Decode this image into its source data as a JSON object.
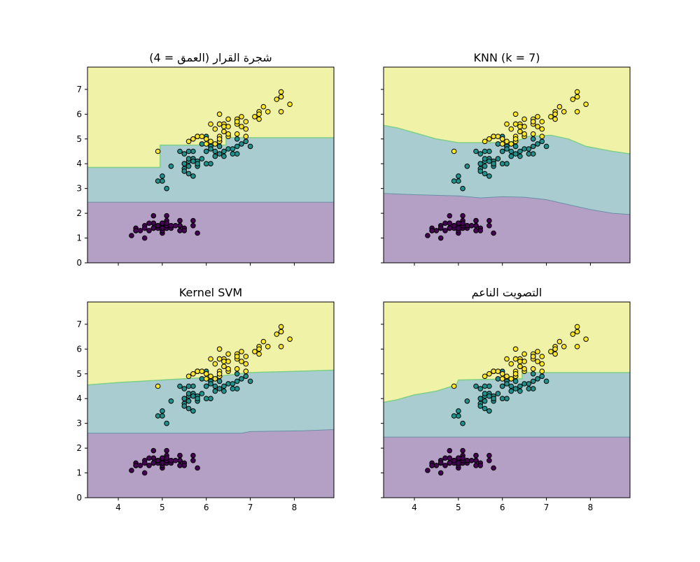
{
  "colors": {
    "class_0": "#440154",
    "class_1": "#21918c",
    "class_2": "#fde725",
    "region_0": "#b4a0c4",
    "region_1": "#a8ccd0",
    "region_2": "#f0f2a8",
    "boundary_upper": "#7fcf86",
    "boundary_lower": "#6a8fa6",
    "point_edge": "#000000"
  },
  "chart_data": [
    {
      "type": "scatter",
      "title": "شجرة القرار (العمق = 4)",
      "xlim": [
        3.3,
        8.9
      ],
      "ylim": [
        0,
        7.9
      ],
      "xticks": [
        4,
        5,
        6,
        7,
        8
      ],
      "yticks": [
        0,
        1,
        2,
        3,
        4,
        5,
        6,
        7
      ],
      "show_xtick_labels": false,
      "show_ytick_labels": true,
      "grid": false,
      "boundary_upper": [
        [
          3.3,
          3.85
        ],
        [
          4.95,
          3.85
        ],
        [
          4.95,
          4.75
        ],
        [
          6.45,
          4.75
        ],
        [
          6.45,
          5.05
        ],
        [
          8.9,
          5.05
        ]
      ],
      "boundary_lower": [
        [
          3.3,
          2.45
        ],
        [
          8.9,
          2.45
        ]
      ]
    },
    {
      "type": "scatter",
      "title": "KNN (k = 7)",
      "xlim": [
        3.3,
        8.9
      ],
      "ylim": [
        0,
        7.9
      ],
      "xticks": [
        4,
        5,
        6,
        7,
        8
      ],
      "yticks": [
        0,
        1,
        2,
        3,
        4,
        5,
        6,
        7
      ],
      "show_xtick_labels": false,
      "show_ytick_labels": false,
      "grid": false,
      "boundary_upper": [
        [
          3.3,
          5.55
        ],
        [
          3.6,
          5.45
        ],
        [
          4.0,
          5.25
        ],
        [
          4.5,
          5.0
        ],
        [
          5.0,
          4.85
        ],
        [
          6.0,
          4.85
        ],
        [
          6.3,
          4.9
        ],
        [
          6.6,
          5.1
        ],
        [
          7.1,
          5.15
        ],
        [
          7.5,
          5.0
        ],
        [
          7.9,
          4.7
        ],
        [
          8.5,
          4.5
        ],
        [
          8.9,
          4.4
        ]
      ],
      "boundary_lower": [
        [
          3.3,
          2.8
        ],
        [
          4.0,
          2.75
        ],
        [
          5.0,
          2.7
        ],
        [
          5.5,
          2.62
        ],
        [
          6.0,
          2.67
        ],
        [
          6.5,
          2.65
        ],
        [
          7.0,
          2.55
        ],
        [
          7.5,
          2.35
        ],
        [
          8.0,
          2.15
        ],
        [
          8.5,
          2.0
        ],
        [
          8.9,
          1.95
        ]
      ]
    },
    {
      "type": "scatter",
      "title": "Kernel SVM",
      "xlim": [
        3.3,
        8.9
      ],
      "ylim": [
        0,
        7.9
      ],
      "xticks": [
        4,
        5,
        6,
        7,
        8
      ],
      "yticks": [
        0,
        1,
        2,
        3,
        4,
        5,
        6,
        7
      ],
      "show_xtick_labels": true,
      "show_ytick_labels": true,
      "grid": false,
      "boundary_upper": [
        [
          3.3,
          4.55
        ],
        [
          4.0,
          4.65
        ],
        [
          5.0,
          4.75
        ],
        [
          6.0,
          4.85
        ],
        [
          7.0,
          5.05
        ],
        [
          8.0,
          5.1
        ],
        [
          8.9,
          5.15
        ]
      ],
      "boundary_lower": [
        [
          3.3,
          2.6
        ],
        [
          6.8,
          2.6
        ],
        [
          7.0,
          2.67
        ],
        [
          8.2,
          2.7
        ],
        [
          8.9,
          2.75
        ]
      ]
    },
    {
      "type": "scatter",
      "title": "التصويت الناعم",
      "xlim": [
        3.3,
        8.9
      ],
      "ylim": [
        0,
        7.9
      ],
      "xticks": [
        4,
        5,
        6,
        7,
        8
      ],
      "yticks": [
        0,
        1,
        2,
        3,
        4,
        5,
        6,
        7
      ],
      "show_xtick_labels": true,
      "show_ytick_labels": false,
      "grid": false,
      "boundary_upper": [
        [
          3.3,
          3.85
        ],
        [
          3.6,
          3.95
        ],
        [
          4.0,
          4.15
        ],
        [
          4.5,
          4.3
        ],
        [
          4.95,
          4.55
        ],
        [
          5.0,
          4.75
        ],
        [
          6.45,
          4.8
        ],
        [
          6.45,
          5.05
        ],
        [
          8.9,
          5.05
        ]
      ],
      "boundary_lower": [
        [
          3.3,
          2.45
        ],
        [
          8.9,
          2.45
        ]
      ]
    }
  ],
  "points": {
    "class_0": [
      [
        5.1,
        1.4
      ],
      [
        4.9,
        1.4
      ],
      [
        4.7,
        1.3
      ],
      [
        4.6,
        1.5
      ],
      [
        5.0,
        1.4
      ],
      [
        5.4,
        1.7
      ],
      [
        4.6,
        1.4
      ],
      [
        5.0,
        1.5
      ],
      [
        4.4,
        1.4
      ],
      [
        4.9,
        1.5
      ],
      [
        5.4,
        1.5
      ],
      [
        4.8,
        1.6
      ],
      [
        4.8,
        1.4
      ],
      [
        4.3,
        1.1
      ],
      [
        5.8,
        1.2
      ],
      [
        5.7,
        1.5
      ],
      [
        5.4,
        1.3
      ],
      [
        5.1,
        1.4
      ],
      [
        5.7,
        1.7
      ],
      [
        5.1,
        1.5
      ],
      [
        5.4,
        1.7
      ],
      [
        5.1,
        1.5
      ],
      [
        4.6,
        1.0
      ],
      [
        5.1,
        1.7
      ],
      [
        4.8,
        1.9
      ],
      [
        5.0,
        1.6
      ],
      [
        5.0,
        1.6
      ],
      [
        5.2,
        1.5
      ],
      [
        5.2,
        1.4
      ],
      [
        4.7,
        1.6
      ],
      [
        4.8,
        1.6
      ],
      [
        5.4,
        1.5
      ],
      [
        5.2,
        1.5
      ],
      [
        5.5,
        1.4
      ],
      [
        4.9,
        1.5
      ],
      [
        5.0,
        1.2
      ],
      [
        5.5,
        1.3
      ],
      [
        4.9,
        1.5
      ],
      [
        4.4,
        1.3
      ],
      [
        5.1,
        1.5
      ],
      [
        5.0,
        1.3
      ],
      [
        4.5,
        1.3
      ],
      [
        4.4,
        1.3
      ],
      [
        5.0,
        1.6
      ],
      [
        5.1,
        1.9
      ],
      [
        4.8,
        1.4
      ],
      [
        5.1,
        1.6
      ],
      [
        4.6,
        1.4
      ],
      [
        5.3,
        1.5
      ],
      [
        5.0,
        1.4
      ]
    ],
    "class_1": [
      [
        7.0,
        4.7
      ],
      [
        6.4,
        4.5
      ],
      [
        6.9,
        4.9
      ],
      [
        5.5,
        4.0
      ],
      [
        6.5,
        4.6
      ],
      [
        5.7,
        4.5
      ],
      [
        6.3,
        4.7
      ],
      [
        4.9,
        3.3
      ],
      [
        6.6,
        4.6
      ],
      [
        5.2,
        3.9
      ],
      [
        5.0,
        3.5
      ],
      [
        5.9,
        4.2
      ],
      [
        6.0,
        4.0
      ],
      [
        6.1,
        4.7
      ],
      [
        5.6,
        3.6
      ],
      [
        6.7,
        4.4
      ],
      [
        5.6,
        4.5
      ],
      [
        5.8,
        4.1
      ],
      [
        6.2,
        4.5
      ],
      [
        5.6,
        3.9
      ],
      [
        5.9,
        4.8
      ],
      [
        6.1,
        4.0
      ],
      [
        6.3,
        4.9
      ],
      [
        6.1,
        4.7
      ],
      [
        6.4,
        4.3
      ],
      [
        6.6,
        4.4
      ],
      [
        6.8,
        4.8
      ],
      [
        6.7,
        5.0
      ],
      [
        6.0,
        4.5
      ],
      [
        5.7,
        3.5
      ],
      [
        5.5,
        3.8
      ],
      [
        5.5,
        3.7
      ],
      [
        5.8,
        3.9
      ],
      [
        6.0,
        5.1
      ],
      [
        5.4,
        4.5
      ],
      [
        6.0,
        4.5
      ],
      [
        6.7,
        4.7
      ],
      [
        6.3,
        4.4
      ],
      [
        5.6,
        4.1
      ],
      [
        5.5,
        4.0
      ],
      [
        5.5,
        4.4
      ],
      [
        6.1,
        4.6
      ],
      [
        5.8,
        4.0
      ],
      [
        5.0,
        3.3
      ],
      [
        5.6,
        4.2
      ],
      [
        5.7,
        4.2
      ],
      [
        5.7,
        4.2
      ],
      [
        6.2,
        4.3
      ],
      [
        5.1,
        3.0
      ],
      [
        5.7,
        4.1
      ]
    ],
    "class_2": [
      [
        6.3,
        6.0
      ],
      [
        5.8,
        5.1
      ],
      [
        7.1,
        5.9
      ],
      [
        6.3,
        5.6
      ],
      [
        6.5,
        5.8
      ],
      [
        7.6,
        6.6
      ],
      [
        4.9,
        4.5
      ],
      [
        7.3,
        6.3
      ],
      [
        6.7,
        5.8
      ],
      [
        7.2,
        6.1
      ],
      [
        6.5,
        5.1
      ],
      [
        6.4,
        5.3
      ],
      [
        6.8,
        5.5
      ],
      [
        5.7,
        5.0
      ],
      [
        5.8,
        5.1
      ],
      [
        6.4,
        5.3
      ],
      [
        6.5,
        5.5
      ],
      [
        7.7,
        6.7
      ],
      [
        7.7,
        6.9
      ],
      [
        6.0,
        5.0
      ],
      [
        6.9,
        5.7
      ],
      [
        5.6,
        4.9
      ],
      [
        7.7,
        6.7
      ],
      [
        6.3,
        4.9
      ],
      [
        6.7,
        5.7
      ],
      [
        7.2,
        6.0
      ],
      [
        6.2,
        4.8
      ],
      [
        6.1,
        4.9
      ],
      [
        6.4,
        5.6
      ],
      [
        7.2,
        5.8
      ],
      [
        7.4,
        6.1
      ],
      [
        7.9,
        6.4
      ],
      [
        6.4,
        5.6
      ],
      [
        6.3,
        5.1
      ],
      [
        6.1,
        5.6
      ],
      [
        7.7,
        6.1
      ],
      [
        6.3,
        5.6
      ],
      [
        6.4,
        5.5
      ],
      [
        6.0,
        4.8
      ],
      [
        6.9,
        5.4
      ],
      [
        6.7,
        5.6
      ],
      [
        6.9,
        5.1
      ],
      [
        5.8,
        5.1
      ],
      [
        6.8,
        5.9
      ],
      [
        6.7,
        5.7
      ],
      [
        6.7,
        5.2
      ],
      [
        6.3,
        5.0
      ],
      [
        6.5,
        5.2
      ],
      [
        6.2,
        5.4
      ],
      [
        5.9,
        5.1
      ]
    ]
  }
}
